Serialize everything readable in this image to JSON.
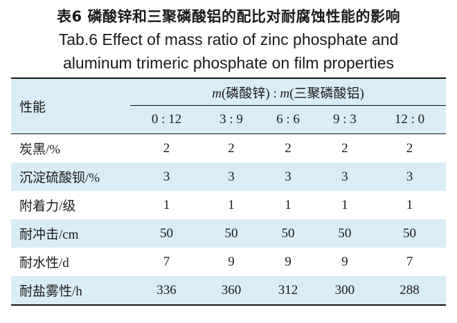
{
  "title": {
    "chinese": "表6 磷酸锌和三聚磷酸铝的配比对耐腐蚀性能的影响",
    "english_line1": "Tab.6 Effect of mass ratio of zinc phosphate and",
    "english_line2": "aluminum trimeric phosphate on film properties"
  },
  "table": {
    "row_header": "性能",
    "group_header": {
      "m1_symbol": "m",
      "m1_name": "(磷酸锌)",
      "separator": " : ",
      "m2_symbol": "m",
      "m2_name": "(三聚磷酸铝)"
    },
    "columns": [
      "0 : 12",
      "3 : 9",
      "6 : 6",
      "9 : 3",
      "12 : 0"
    ],
    "rows": [
      {
        "label": "炭黑/%",
        "values": [
          "2",
          "2",
          "2",
          "2",
          "2"
        ]
      },
      {
        "label": "沉淀硫酸钡/%",
        "values": [
          "3",
          "3",
          "3",
          "3",
          "3"
        ]
      },
      {
        "label": "附着力/级",
        "values": [
          "1",
          "1",
          "1",
          "1",
          "1"
        ]
      },
      {
        "label": "耐冲击/cm",
        "values": [
          "50",
          "50",
          "50",
          "50",
          "50"
        ]
      },
      {
        "label": "耐水性/d",
        "values": [
          "7",
          "9",
          "9",
          "9",
          "7"
        ]
      },
      {
        "label": "耐盐雾性/h",
        "values": [
          "336",
          "360",
          "312",
          "300",
          "288"
        ]
      }
    ]
  },
  "colors": {
    "shade": "#d9edf6",
    "rule": "#111111"
  }
}
